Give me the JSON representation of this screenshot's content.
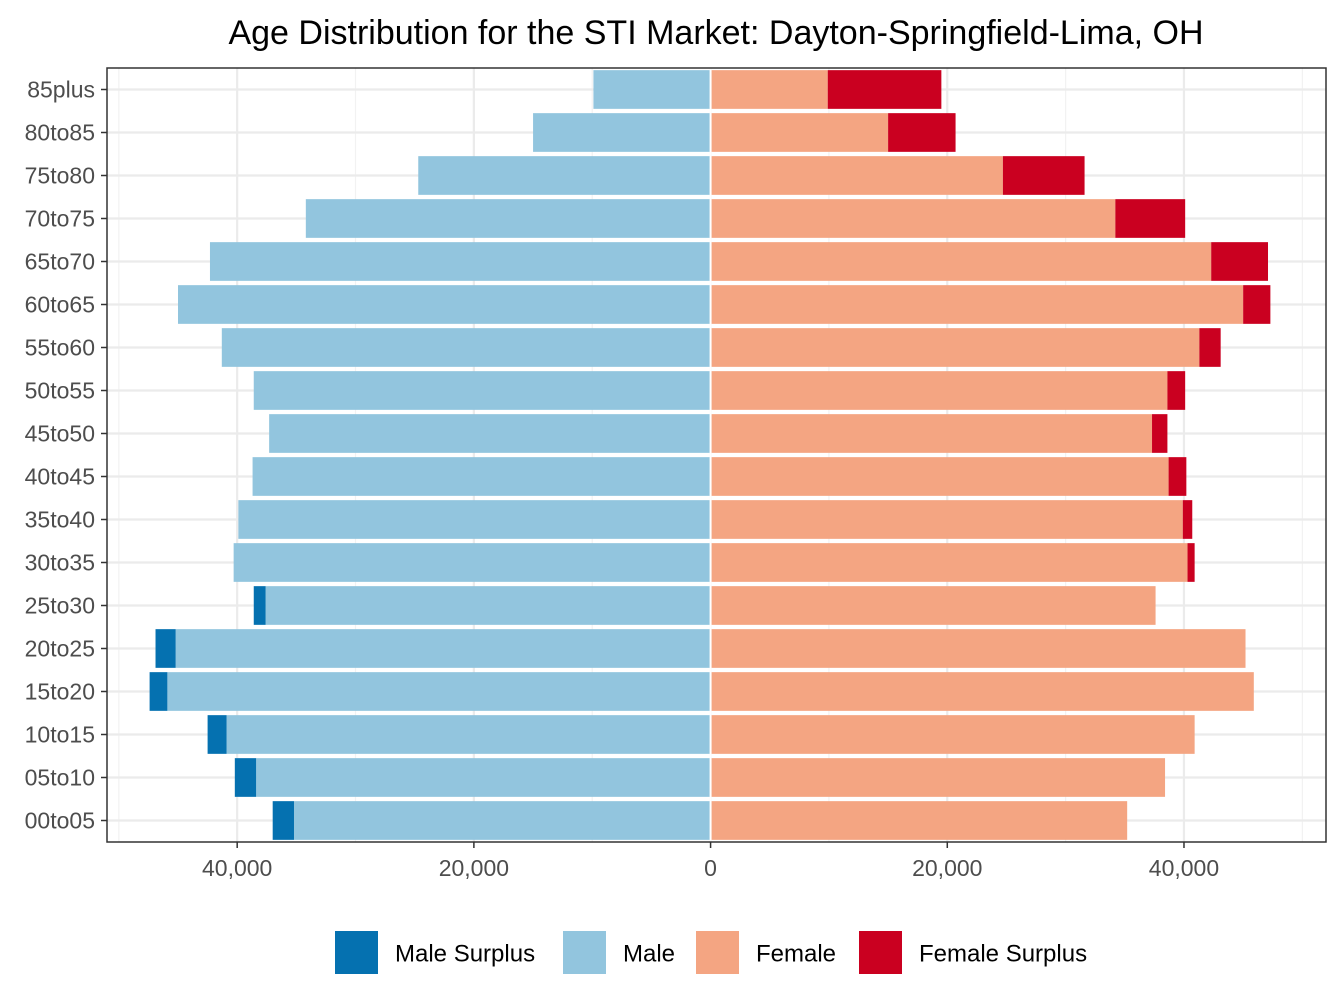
{
  "chart_data": {
    "type": "bar",
    "orientation": "horizontal",
    "title": "Age Distribution for the STI Market: Dayton-Springfield-Lima, OH",
    "xlabel": "",
    "ylabel": "",
    "xlim": [
      -51000,
      52000
    ],
    "x_ticks": [
      -40000,
      -20000,
      0,
      20000,
      40000
    ],
    "x_tick_labels": [
      "40,000",
      "20,000",
      "0",
      "20,000",
      "40,000"
    ],
    "grid": true,
    "legend_position": "bottom",
    "categories": [
      "00to05",
      "05to10",
      "10to15",
      "15to20",
      "20to25",
      "25to30",
      "30to35",
      "35to40",
      "40to45",
      "45to50",
      "50to55",
      "55to60",
      "60to65",
      "65to70",
      "70to75",
      "75to80",
      "80to85",
      "85plus"
    ],
    "series": [
      {
        "name": "Male Surplus",
        "color": "#0571b0",
        "values": [
          1800,
          1800,
          1600,
          1500,
          1700,
          1000,
          0,
          0,
          0,
          0,
          0,
          0,
          0,
          0,
          0,
          0,
          0,
          0
        ]
      },
      {
        "name": "Male",
        "color": "#92c5de",
        "values": [
          35200,
          38400,
          40900,
          45900,
          45200,
          37600,
          40300,
          39900,
          38700,
          37300,
          38600,
          41300,
          45000,
          42300,
          34200,
          24700,
          15000,
          9900
        ]
      },
      {
        "name": "Female",
        "color": "#f4a582",
        "values": [
          35200,
          38400,
          40900,
          45900,
          45200,
          37600,
          40300,
          39900,
          38700,
          37300,
          38600,
          41300,
          45000,
          42300,
          34200,
          24700,
          15000,
          9900
        ]
      },
      {
        "name": "Female Surplus",
        "color": "#ca0020",
        "values": [
          0,
          0,
          0,
          0,
          0,
          0,
          600,
          800,
          1500,
          1300,
          1500,
          1800,
          2300,
          4800,
          5900,
          6900,
          5700,
          9600
        ]
      }
    ]
  }
}
